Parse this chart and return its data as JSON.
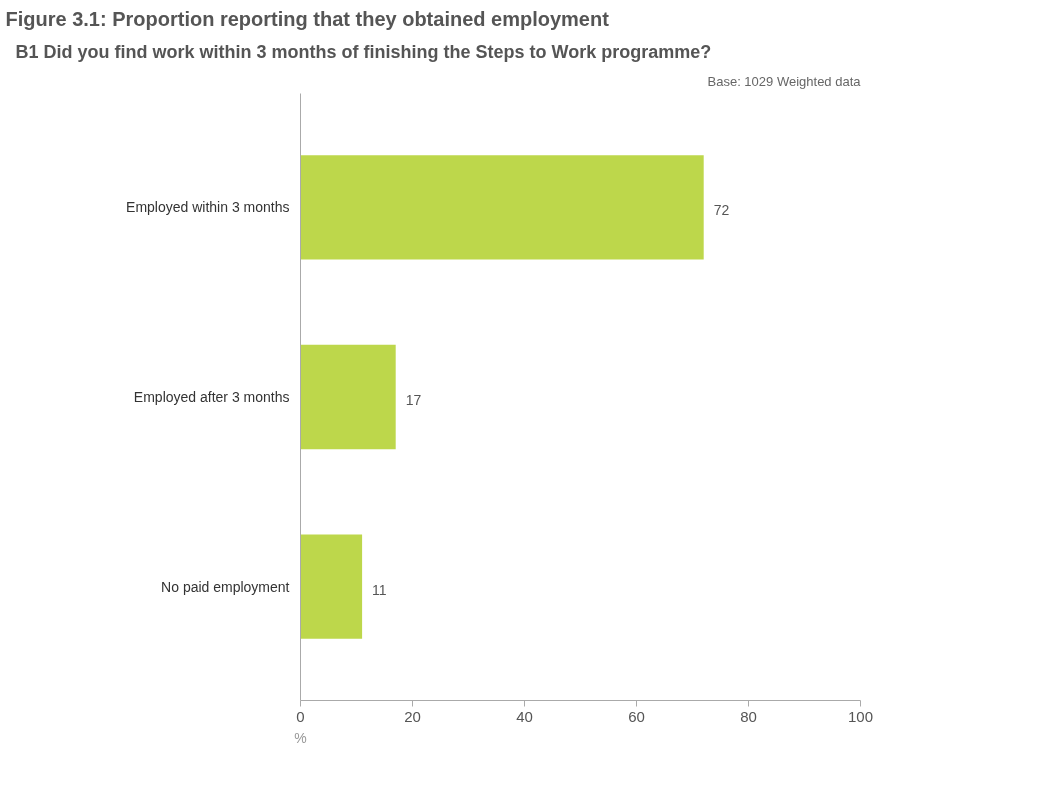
{
  "chart_data": {
    "type": "bar",
    "orientation": "horizontal",
    "title": "Figure 3.1: Proportion reporting that they obtained employment",
    "subtitle": "B1 Did you find work within 3 months of finishing the Steps to Work programme?",
    "annotations": [
      "Base: 1029 Weighted data"
    ],
    "xlabel": "%",
    "categories": [
      "Employed within 3 months",
      "Employed after 3 months",
      "No paid employment"
    ],
    "values": [
      72,
      17,
      11
    ],
    "color": "#bdd74b",
    "xlim": [
      0,
      100
    ],
    "xticks": [
      0,
      20,
      40,
      60,
      80,
      100
    ],
    "data_labels": true,
    "grid": false
  }
}
